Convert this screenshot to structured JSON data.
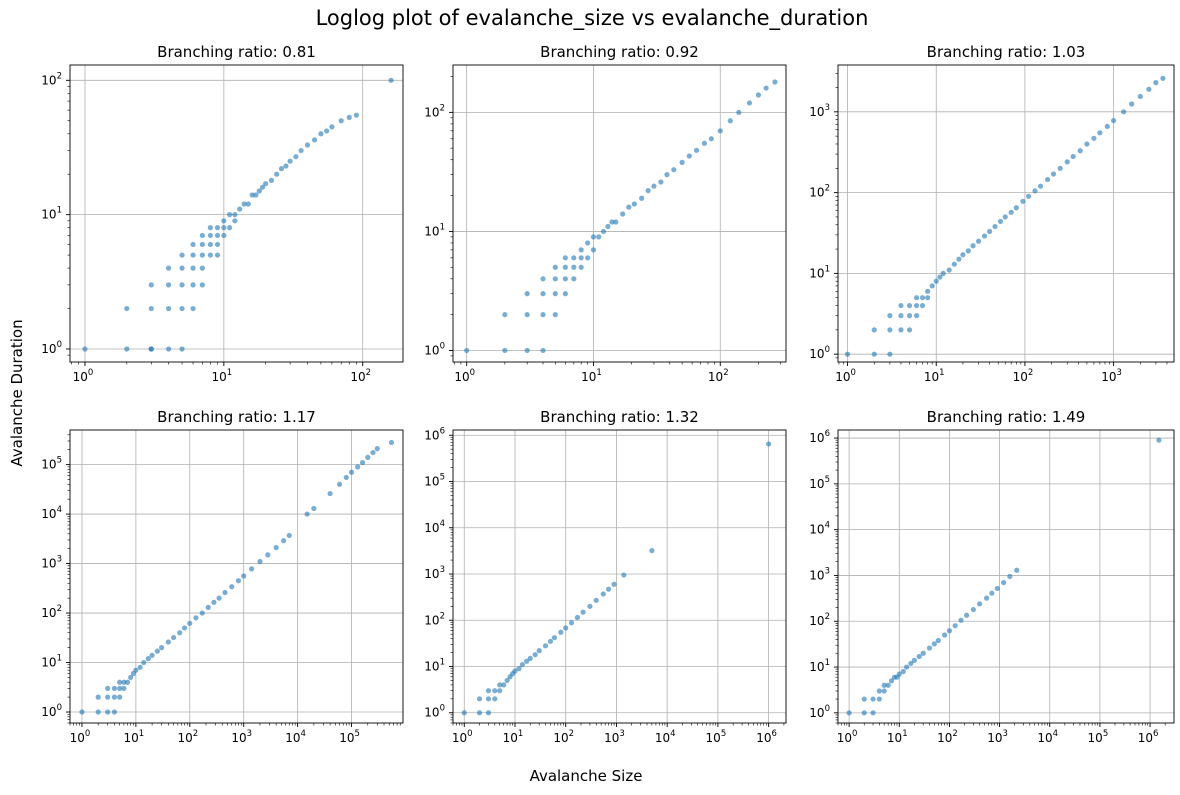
{
  "figure": {
    "suptitle": "Loglog plot of evalanche_size vs evalanche_duration",
    "xlabel": "Avalanche Size",
    "ylabel": "Avalanche Duration",
    "point_color": "#1f77b4",
    "grid_color": "#b0b0b0"
  },
  "chart_data": [
    {
      "type": "scatter",
      "title": "Branching ratio: 0.81",
      "xscale": "log",
      "yscale": "log",
      "xlim": [
        0.78,
        195
      ],
      "ylim": [
        0.8,
        130
      ],
      "grid": true,
      "xticks": [
        {
          "base": "10",
          "exp": "0"
        },
        {
          "base": "10",
          "exp": "1"
        },
        {
          "base": "10",
          "exp": "2"
        }
      ],
      "yticks": [
        {
          "base": "10",
          "exp": "0"
        },
        {
          "base": "10",
          "exp": "1"
        },
        {
          "base": "10",
          "exp": "2"
        }
      ],
      "series": [
        {
          "x": [
            1,
            2,
            2,
            3,
            3,
            3,
            3,
            4,
            4,
            4,
            4,
            5,
            5,
            5,
            5,
            5,
            6,
            6,
            6,
            6,
            6,
            7,
            7,
            7,
            7,
            7,
            8,
            8,
            8,
            8,
            9,
            9,
            9,
            9,
            10,
            10,
            10,
            11,
            11,
            12,
            12,
            13,
            14,
            15,
            16,
            17,
            18,
            19,
            20,
            22,
            24,
            26,
            28,
            30,
            33,
            36,
            40,
            45,
            50,
            55,
            60,
            70,
            80,
            90,
            160
          ],
          "y": [
            1,
            1,
            2,
            1,
            2,
            3,
            1,
            1,
            2,
            3,
            4,
            2,
            3,
            4,
            5,
            1,
            3,
            4,
            5,
            6,
            2,
            4,
            5,
            6,
            7,
            3,
            5,
            6,
            7,
            8,
            6,
            7,
            8,
            5,
            7,
            8,
            9,
            8,
            10,
            9,
            10,
            11,
            12,
            12,
            14,
            14,
            15,
            16,
            17,
            18,
            20,
            22,
            23,
            25,
            27,
            30,
            33,
            36,
            40,
            42,
            45,
            50,
            53,
            55,
            100
          ]
        }
      ]
    },
    {
      "type": "scatter",
      "title": "Branching ratio: 0.92",
      "xscale": "log",
      "yscale": "log",
      "xlim": [
        0.78,
        330
      ],
      "ylim": [
        0.8,
        250
      ],
      "grid": true,
      "xticks": [
        {
          "base": "10",
          "exp": "0"
        },
        {
          "base": "10",
          "exp": "1"
        },
        {
          "base": "10",
          "exp": "2"
        }
      ],
      "yticks": [
        {
          "base": "10",
          "exp": "0"
        },
        {
          "base": "10",
          "exp": "1"
        },
        {
          "base": "10",
          "exp": "2"
        }
      ],
      "series": [
        {
          "x": [
            1,
            2,
            2,
            3,
            3,
            3,
            4,
            4,
            4,
            4,
            5,
            5,
            5,
            5,
            6,
            6,
            6,
            6,
            7,
            7,
            7,
            8,
            8,
            8,
            9,
            9,
            10,
            10,
            11,
            12,
            13,
            14,
            15,
            17,
            19,
            21,
            24,
            27,
            30,
            34,
            38,
            43,
            50,
            57,
            65,
            75,
            85,
            100,
            120,
            140,
            170,
            200,
            230,
            270
          ],
          "y": [
            1,
            1,
            2,
            1,
            2,
            3,
            1,
            2,
            3,
            4,
            3,
            4,
            5,
            2,
            3,
            4,
            5,
            6,
            4,
            5,
            6,
            5,
            6,
            7,
            6,
            8,
            7,
            9,
            9,
            10,
            11,
            12,
            12,
            14,
            16,
            17,
            19,
            22,
            24,
            26,
            30,
            33,
            38,
            43,
            48,
            55,
            60,
            70,
            85,
            100,
            120,
            140,
            160,
            180
          ]
        }
      ]
    },
    {
      "type": "scatter",
      "title": "Branching ratio: 1.03",
      "xscale": "log",
      "yscale": "log",
      "xlim": [
        0.78,
        4800
      ],
      "ylim": [
        0.8,
        3800
      ],
      "grid": true,
      "xticks": [
        {
          "base": "10",
          "exp": "0"
        },
        {
          "base": "10",
          "exp": "1"
        },
        {
          "base": "10",
          "exp": "2"
        },
        {
          "base": "10",
          "exp": "3"
        }
      ],
      "yticks": [
        {
          "base": "10",
          "exp": "0"
        },
        {
          "base": "10",
          "exp": "1"
        },
        {
          "base": "10",
          "exp": "2"
        },
        {
          "base": "10",
          "exp": "3"
        }
      ],
      "series": [
        {
          "x": [
            1,
            2,
            2,
            3,
            3,
            3,
            4,
            4,
            4,
            5,
            5,
            5,
            6,
            6,
            6,
            7,
            7,
            8,
            8,
            9,
            10,
            11,
            12,
            14,
            16,
            18,
            20,
            23,
            26,
            30,
            35,
            40,
            46,
            53,
            60,
            70,
            80,
            95,
            110,
            130,
            150,
            180,
            210,
            250,
            300,
            350,
            420,
            500,
            600,
            700,
            850,
            1000,
            1300,
            1600,
            2000,
            2500,
            3000,
            3600
          ],
          "y": [
            1,
            1,
            2,
            1,
            2,
            3,
            2,
            3,
            4,
            2,
            3,
            4,
            3,
            4,
            5,
            4,
            5,
            5,
            6,
            7,
            8,
            9,
            10,
            11,
            13,
            15,
            17,
            19,
            22,
            25,
            29,
            33,
            38,
            44,
            50,
            57,
            65,
            78,
            90,
            105,
            120,
            145,
            170,
            200,
            240,
            280,
            330,
            400,
            470,
            550,
            660,
            780,
            1000,
            1250,
            1550,
            1900,
            2300,
            2600
          ]
        }
      ]
    },
    {
      "type": "scatter",
      "title": "Branching ratio: 1.17",
      "xscale": "log",
      "yscale": "log",
      "xlim": [
        0.6,
        900000
      ],
      "ylim": [
        0.6,
        500000
      ],
      "grid": true,
      "xticks": [
        {
          "base": "10",
          "exp": "0"
        },
        {
          "base": "10",
          "exp": "1"
        },
        {
          "base": "10",
          "exp": "2"
        },
        {
          "base": "10",
          "exp": "3"
        },
        {
          "base": "10",
          "exp": "4"
        },
        {
          "base": "10",
          "exp": "5"
        }
      ],
      "yticks": [
        {
          "base": "10",
          "exp": "0"
        },
        {
          "base": "10",
          "exp": "1"
        },
        {
          "base": "10",
          "exp": "2"
        },
        {
          "base": "10",
          "exp": "3"
        },
        {
          "base": "10",
          "exp": "4"
        },
        {
          "base": "10",
          "exp": "5"
        }
      ],
      "series": [
        {
          "x": [
            1,
            2,
            2,
            3,
            3,
            3,
            4,
            4,
            4,
            5,
            5,
            5,
            6,
            6,
            7,
            8,
            9,
            10,
            12,
            14,
            17,
            20,
            25,
            30,
            40,
            50,
            65,
            80,
            100,
            130,
            170,
            220,
            280,
            350,
            450,
            600,
            800,
            1000,
            1400,
            2000,
            2800,
            4000,
            5500,
            7000,
            15000,
            20000,
            40000,
            60000,
            80000,
            100000,
            130000,
            160000,
            200000,
            250000,
            300000,
            550000
          ],
          "y": [
            1,
            1,
            2,
            1,
            2,
            3,
            1,
            2,
            3,
            2,
            3,
            4,
            3,
            4,
            4,
            5,
            6,
            7,
            8,
            10,
            12,
            14,
            17,
            20,
            26,
            32,
            40,
            50,
            62,
            80,
            100,
            130,
            165,
            200,
            260,
            340,
            450,
            560,
            780,
            1100,
            1500,
            2100,
            2900,
            3700,
            10000,
            13000,
            26000,
            40000,
            55000,
            70000,
            90000,
            110000,
            140000,
            175000,
            210000,
            280000
          ]
        }
      ]
    },
    {
      "type": "scatter",
      "title": "Branching ratio: 1.32",
      "xscale": "log",
      "yscale": "log",
      "xlim": [
        0.6,
        2200000
      ],
      "ylim": [
        0.6,
        1300000
      ],
      "grid": true,
      "xticks": [
        {
          "base": "10",
          "exp": "0"
        },
        {
          "base": "10",
          "exp": "1"
        },
        {
          "base": "10",
          "exp": "2"
        },
        {
          "base": "10",
          "exp": "3"
        },
        {
          "base": "10",
          "exp": "4"
        },
        {
          "base": "10",
          "exp": "5"
        },
        {
          "base": "10",
          "exp": "6"
        }
      ],
      "yticks": [
        {
          "base": "10",
          "exp": "0"
        },
        {
          "base": "10",
          "exp": "1"
        },
        {
          "base": "10",
          "exp": "2"
        },
        {
          "base": "10",
          "exp": "3"
        },
        {
          "base": "10",
          "exp": "4"
        },
        {
          "base": "10",
          "exp": "5"
        },
        {
          "base": "10",
          "exp": "6"
        }
      ],
      "series": [
        {
          "x": [
            1,
            2,
            2,
            3,
            3,
            3,
            4,
            4,
            5,
            5,
            6,
            7,
            8,
            9,
            10,
            12,
            14,
            17,
            20,
            25,
            30,
            40,
            50,
            60,
            80,
            100,
            130,
            170,
            220,
            300,
            400,
            550,
            700,
            900,
            1400,
            5000,
            1000000
          ],
          "y": [
            1,
            1,
            2,
            1,
            2,
            3,
            2,
            3,
            3,
            4,
            4,
            5,
            6,
            7,
            8,
            9,
            11,
            13,
            15,
            18,
            22,
            28,
            35,
            42,
            55,
            68,
            88,
            115,
            150,
            200,
            270,
            370,
            470,
            600,
            950,
            3200,
            650000
          ]
        }
      ]
    },
    {
      "type": "scatter",
      "title": "Branching ratio: 1.49",
      "xscale": "log",
      "yscale": "log",
      "xlim": [
        0.6,
        3000000
      ],
      "ylim": [
        0.6,
        1500000
      ],
      "grid": true,
      "xticks": [
        {
          "base": "10",
          "exp": "0"
        },
        {
          "base": "10",
          "exp": "1"
        },
        {
          "base": "10",
          "exp": "2"
        },
        {
          "base": "10",
          "exp": "3"
        },
        {
          "base": "10",
          "exp": "4"
        },
        {
          "base": "10",
          "exp": "5"
        },
        {
          "base": "10",
          "exp": "6"
        }
      ],
      "yticks": [
        {
          "base": "10",
          "exp": "0"
        },
        {
          "base": "10",
          "exp": "1"
        },
        {
          "base": "10",
          "exp": "2"
        },
        {
          "base": "10",
          "exp": "3"
        },
        {
          "base": "10",
          "exp": "4"
        },
        {
          "base": "10",
          "exp": "5"
        },
        {
          "base": "10",
          "exp": "6"
        }
      ],
      "series": [
        {
          "x": [
            1,
            2,
            2,
            3,
            3,
            4,
            4,
            5,
            5,
            6,
            7,
            8,
            9,
            10,
            12,
            14,
            17,
            20,
            25,
            30,
            40,
            50,
            60,
            80,
            100,
            130,
            170,
            220,
            300,
            400,
            550,
            700,
            900,
            1200,
            1600,
            2200,
            1500000
          ],
          "y": [
            1,
            1,
            2,
            1,
            2,
            2,
            3,
            3,
            4,
            4,
            5,
            6,
            6,
            7,
            8,
            10,
            12,
            14,
            17,
            20,
            26,
            32,
            38,
            50,
            62,
            80,
            105,
            135,
            180,
            240,
            320,
            410,
            520,
            700,
            950,
            1300,
            900000
          ]
        }
      ]
    }
  ]
}
